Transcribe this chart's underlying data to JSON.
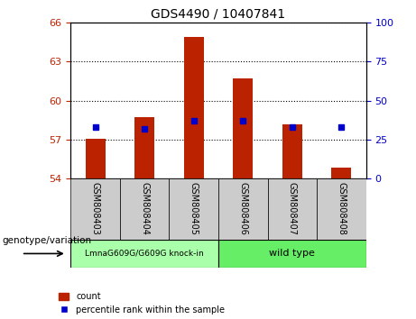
{
  "title": "GDS4490 / 10407841",
  "samples": [
    "GSM808403",
    "GSM808404",
    "GSM808405",
    "GSM808406",
    "GSM808407",
    "GSM808408"
  ],
  "count_values": [
    57.05,
    58.75,
    64.85,
    61.7,
    58.2,
    54.85
  ],
  "percentile_values": [
    33,
    32,
    37,
    37,
    33,
    33
  ],
  "yleft_min": 54,
  "yleft_max": 66,
  "yright_min": 0,
  "yright_max": 100,
  "yticks_left": [
    54,
    57,
    60,
    63,
    66
  ],
  "yticks_right": [
    0,
    25,
    50,
    75,
    100
  ],
  "bar_color": "#bb2200",
  "dot_color": "#0000cc",
  "group1_label": "LmnaG609G/G609G knock-in",
  "group2_label": "wild type",
  "group1_color": "#aaffaa",
  "group2_color": "#66ee66",
  "xlabel": "genotype/variation",
  "legend_count": "count",
  "legend_percentile": "percentile rank within the sample",
  "bar_width": 0.4,
  "cell_color": "#cccccc"
}
